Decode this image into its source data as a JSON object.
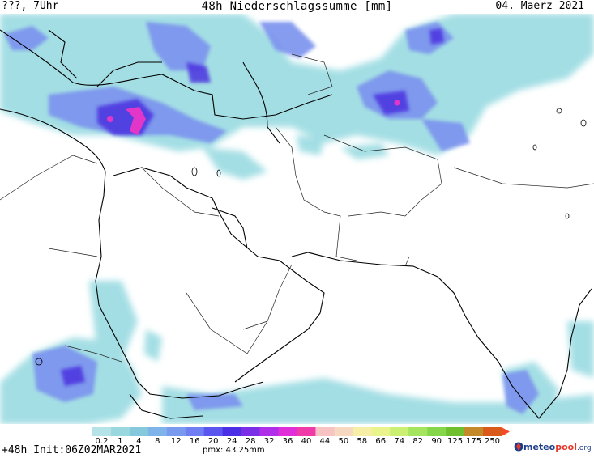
{
  "header": {
    "left": "???, 7Uhr",
    "title": "48h Niederschlagssumme [mm]",
    "date": "04. Maerz 2021"
  },
  "legend": {
    "labels": [
      "0.2",
      "1",
      "4",
      "8",
      "12",
      "16",
      "20",
      "24",
      "28",
      "32",
      "36",
      "40",
      "44",
      "50",
      "58",
      "66",
      "74",
      "82",
      "90",
      "125",
      "175",
      "250"
    ],
    "colors": [
      "#b5e3e8",
      "#9ad8e0",
      "#86c9dd",
      "#7eb4e9",
      "#7a9af0",
      "#6f7ef2",
      "#5a55ef",
      "#4a2fe6",
      "#7a2ee6",
      "#b02fe9",
      "#e02fd8",
      "#f03aa8",
      "#f7c3c3",
      "#f7d8c0",
      "#f7eea7",
      "#e9f58c",
      "#cbef72",
      "#a5e55d",
      "#86d64b",
      "#6fbf2f",
      "#c48a2a",
      "#d95a1a"
    ],
    "arrow_color": "#f44a2a"
  },
  "footer": {
    "init": "+48h Init:06Z02MAR2021",
    "pmx": "pmx: 43.25mm"
  },
  "logo": {
    "m": "meteo",
    "p": "pool",
    "o": ".org"
  }
}
